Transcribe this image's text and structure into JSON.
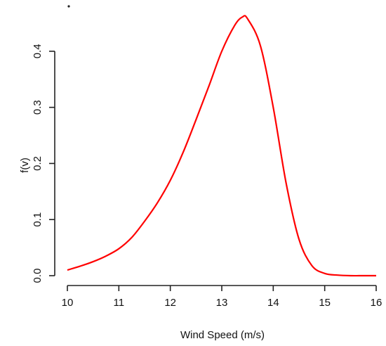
{
  "chart_data": {
    "type": "line",
    "title": "",
    "xlabel": "Wind Speed (m/s)",
    "ylabel": "f(v)",
    "xlim": [
      10,
      16
    ],
    "ylim": [
      0,
      0.46
    ],
    "x_ticks": [
      10,
      11,
      12,
      13,
      14,
      15,
      16
    ],
    "y_ticks": [
      0.0,
      0.1,
      0.2,
      0.3,
      0.4
    ],
    "x_tick_labels": [
      "10",
      "11",
      "12",
      "13",
      "14",
      "15",
      "16"
    ],
    "y_tick_labels": [
      "0.0",
      "0.1",
      "0.2",
      "0.3",
      "0.4"
    ],
    "grid": false,
    "legend": "none",
    "series": [
      {
        "color": "#ff0000",
        "x": [
          10.0,
          10.25,
          10.5,
          10.75,
          11.0,
          11.25,
          11.5,
          11.75,
          12.0,
          12.25,
          12.5,
          12.75,
          13.0,
          13.25,
          13.4,
          13.5,
          13.75,
          14.0,
          14.25,
          14.5,
          14.75,
          15.0,
          15.25,
          15.5,
          15.75,
          16.0
        ],
        "y": [
          0.01,
          0.017,
          0.025,
          0.035,
          0.048,
          0.068,
          0.097,
          0.13,
          0.17,
          0.22,
          0.278,
          0.338,
          0.4,
          0.446,
          0.461,
          0.458,
          0.41,
          0.3,
          0.165,
          0.065,
          0.018,
          0.004,
          0.001,
          0.0,
          0.0,
          0.0
        ]
      }
    ]
  }
}
